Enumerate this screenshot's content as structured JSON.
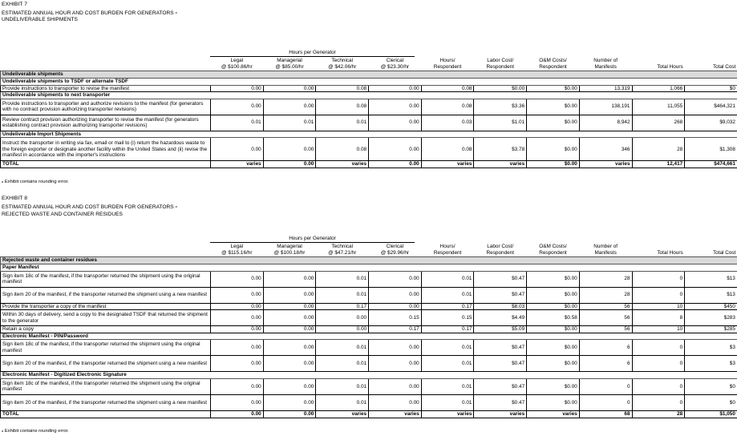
{
  "exhibit7": {
    "label": "EXHIBIT 7",
    "title": "ESTIMATED ANNUAL HOUR AND COST BURDEN FOR GENERATORS",
    "title_note": "a",
    "subtitle": "UNDELIVERABLE SHIPMENTS",
    "group_header": "Hours per Generator",
    "columns": [
      [
        "Legal",
        "@ $100.86/hr"
      ],
      [
        "Managerial",
        "@ $85.00/hr"
      ],
      [
        "Technical",
        "@ $42.06/hr"
      ],
      [
        "Clerical",
        "@ $23.30/hr"
      ],
      [
        "Hours/",
        "Respondent"
      ],
      [
        "Labor Cost/",
        "Respondent"
      ],
      [
        "O&M Costs/",
        "Respondent"
      ],
      [
        "Number of",
        "Manifests"
      ],
      [
        "",
        "Total Hours"
      ],
      [
        "",
        "Total Cost"
      ]
    ],
    "rows": [
      {
        "type": "shade",
        "label": "Undeliverable shipments"
      },
      {
        "type": "sec",
        "label": "Undeliverable shipments to TSDF or alternate TSDF"
      },
      {
        "type": "row",
        "label": "Provide instructions to transporter to revise the manifest",
        "values": [
          "0.00",
          "0.00",
          "0.08",
          "0.00",
          "0.08",
          "$0.00",
          "$0.00",
          "13,319",
          "1,066",
          "$0"
        ]
      },
      {
        "type": "sec",
        "label": "Undeliverable shipments to next transporter"
      },
      {
        "type": "row",
        "label": "Provide instructions to transporter and authorize revisions to the manifest (for generators with no contract provision authorizing transporter revisions)",
        "values": [
          "0.00",
          "0.00",
          "0.08",
          "0.00",
          "0.08",
          "$3.36",
          "$0.00",
          "138,191",
          "11,055",
          "$464,321"
        ]
      },
      {
        "type": "row",
        "label": "Review contract provision authorizing transporter to revise the manifest (for generators establishing contract provision authorizing transporter revisions)",
        "values": [
          "0.01",
          "0.01",
          "0.01",
          "0.00",
          "0.03",
          "$1.01",
          "$0.00",
          "8,942",
          "268",
          "$9,032"
        ]
      },
      {
        "type": "sec",
        "label": "Undeliverable Import Shipments"
      },
      {
        "type": "row",
        "label": "Instruct the transporter in writing via fax, email or mail to (i) return the hazardous waste to the foreign exporter or designate another facility within the United States and (ii) revise the manifest in accordance with the importer's instructions",
        "values": [
          "0.00",
          "0.00",
          "0.08",
          "0.00",
          "0.08",
          "$3.78",
          "$0.00",
          "346",
          "28",
          "$1,308"
        ]
      },
      {
        "type": "total",
        "label": "TOTAL",
        "values": [
          "varies",
          "0.00",
          "varies",
          "0.00",
          "varies",
          "varies",
          "$0.00",
          "varies",
          "12,417",
          "$474,661"
        ]
      }
    ],
    "footnote_mark": "a",
    "footnote": "Exhibit contains rounding error."
  },
  "exhibit8": {
    "label": "EXHIBIT 8",
    "title": "ESTIMATED ANNUAL HOUR AND COST BURDEN FOR GENERATORS",
    "title_note": "a",
    "subtitle": "REJECTED WASTE AND CONTAINER RESIDUES",
    "group_header": "Hours per Generator",
    "columns": [
      [
        "Legal",
        "@ $115.16/hr"
      ],
      [
        "Managerial",
        "@ $100.18/hr"
      ],
      [
        "Technical",
        "@ $47.21/hr"
      ],
      [
        "Clerical",
        "@ $29.96/hr"
      ],
      [
        "Hours/",
        "Respondent"
      ],
      [
        "Labor Cost/",
        "Respondent"
      ],
      [
        "O&M Costs/",
        "Respondent"
      ],
      [
        "Number of",
        "Manifests"
      ],
      [
        "",
        "Total Hours"
      ],
      [
        "",
        "Total Cost"
      ]
    ],
    "rows": [
      {
        "type": "shade",
        "label": "Rejected waste and container residues"
      },
      {
        "type": "sec",
        "label": "Paper Manifest"
      },
      {
        "type": "row",
        "label": "Sign item 18c of the manifest, if the transporter returned the shipment using the original manifest",
        "values": [
          "0.00",
          "0.00",
          "0.01",
          "0.00",
          "0.01",
          "$0.47",
          "$0.00",
          "28",
          "0",
          "$13"
        ]
      },
      {
        "type": "row",
        "label": "Sign item 20 of the manifest, if the transporter returned the shipment using a new manifest",
        "values": [
          "0.00",
          "0.00",
          "0.01",
          "0.00",
          "0.01",
          "$0.47",
          "$0.00",
          "28",
          "0",
          "$13"
        ]
      },
      {
        "type": "row",
        "label": "Provide the transporter a copy of the manifest",
        "values": [
          "0.00",
          "0.00",
          "0.17",
          "0.00",
          "0.17",
          "$8.03",
          "$0.00",
          "56",
          "10",
          "$450"
        ]
      },
      {
        "type": "row",
        "label": "Within 30 days of delivery, send a copy to the designated TSDF that returned the shipment to the generator",
        "values": [
          "0.00",
          "0.00",
          "0.00",
          "0.15",
          "0.15",
          "$4.49",
          "$0.58",
          "56",
          "8",
          "$283"
        ]
      },
      {
        "type": "row",
        "label": "Retain a copy",
        "values": [
          "0.00",
          "0.00",
          "0.00",
          "0.17",
          "0.17",
          "$5.09",
          "$0.00",
          "56",
          "10",
          "$285"
        ]
      },
      {
        "type": "sec",
        "label": "Electronic Manifest - PIN/Password"
      },
      {
        "type": "row",
        "label": "Sign item 18c of the manifest, if the transporter returned the shipment using the original manifest",
        "values": [
          "0.00",
          "0.00",
          "0.01",
          "0.00",
          "0.01",
          "$0.47",
          "$0.00",
          "6",
          "0",
          "$3"
        ]
      },
      {
        "type": "row",
        "label": "Sign item 20 of the manifest, if the transporter returned the shipment using a new manifest",
        "values": [
          "0.00",
          "0.00",
          "0.01",
          "0.00",
          "0.01",
          "$0.47",
          "$0.00",
          "6",
          "0",
          "$3"
        ]
      },
      {
        "type": "sec",
        "label": "Electronic Manifest - Digitized Electronic Signature"
      },
      {
        "type": "row",
        "label": "Sign item 18c of the manifest, if the transporter returned the shipment using the original manifest",
        "values": [
          "0.00",
          "0.00",
          "0.01",
          "0.00",
          "0.01",
          "$0.47",
          "$0.00",
          "0",
          "0",
          "$0"
        ]
      },
      {
        "type": "row",
        "label": "Sign item 20 of the manifest, if the transporter returned the shipment using a new manifest",
        "values": [
          "0.00",
          "0.00",
          "0.01",
          "0.00",
          "0.01",
          "$0.47",
          "$0.00",
          "0",
          "0",
          "$0"
        ]
      },
      {
        "type": "total",
        "label": "TOTAL",
        "values": [
          "0.00",
          "0.00",
          "varies",
          "varies",
          "varies",
          "varies",
          "varies",
          "68",
          "28",
          "$1,050"
        ]
      }
    ],
    "footnote_mark": "a",
    "footnote": "Exhibit contains rounding error."
  }
}
